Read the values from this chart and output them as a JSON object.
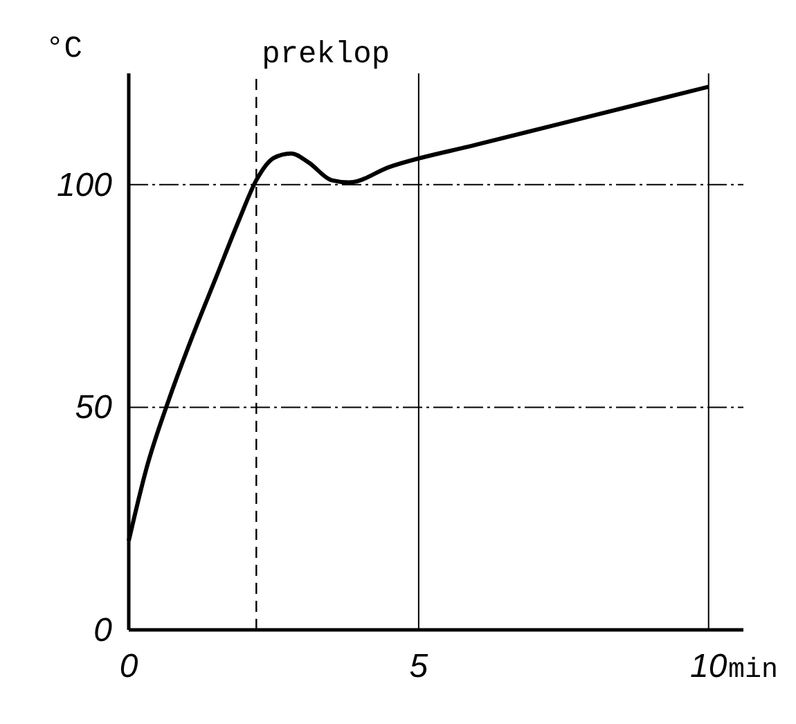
{
  "chart_data": {
    "type": "line",
    "xlabel": "min",
    "ylabel": "°C",
    "x": [
      0,
      0.3,
      0.7,
      1.1,
      1.5,
      1.9,
      2.2,
      2.5,
      2.8,
      3.1,
      3.5,
      3.8,
      4.5,
      6,
      8,
      10
    ],
    "series": [
      {
        "color": "#000000",
        "values": [
          20,
          36,
          52,
          66,
          79,
          92,
          101,
          106,
          107,
          105,
          101,
          100.5,
          104,
          109,
          115.5,
          122
        ]
      }
    ],
    "xlim": [
      0,
      10.6
    ],
    "ylim": [
      0,
      125
    ],
    "xticks": [
      0,
      5,
      10
    ],
    "yticks": [
      0,
      50,
      100
    ],
    "grid": true,
    "marker": "none",
    "line_style": "solid",
    "ref_lines": [
      {
        "axis": "x",
        "value": 2.2,
        "label": "preklop",
        "line_style": "dashed",
        "color": "#000000"
      }
    ]
  }
}
